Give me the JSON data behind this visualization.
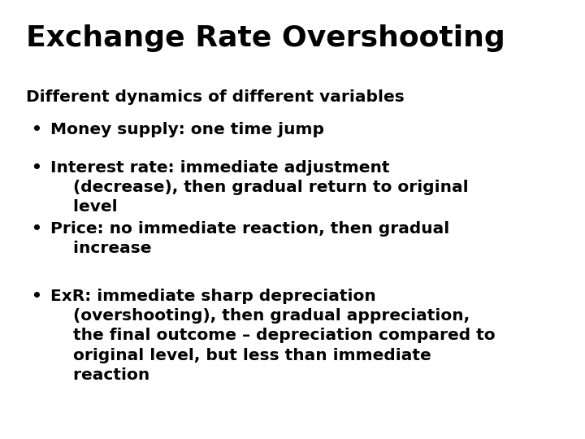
{
  "title": "Exchange Rate Overshooting",
  "title_fontsize": 26,
  "title_weight": "bold",
  "background_color": "#ffffff",
  "text_color": "#000000",
  "subtitle": "Different dynamics of different variables",
  "subtitle_fontsize": 14.5,
  "subtitle_weight": "bold",
  "bullet_char": "•",
  "bullet_fontsize": 14.5,
  "bullet_weight": "bold",
  "items": [
    "Money supply: one time jump",
    "Interest rate: immediate adjustment\n    (decrease), then gradual return to original\n    level",
    "Price: no immediate reaction, then gradual\n    increase",
    "ExR: immediate sharp depreciation\n    (overshooting), then gradual appreciation,\n    the final outcome – depreciation compared to\n    original level, but less than immediate\n    reaction"
  ]
}
